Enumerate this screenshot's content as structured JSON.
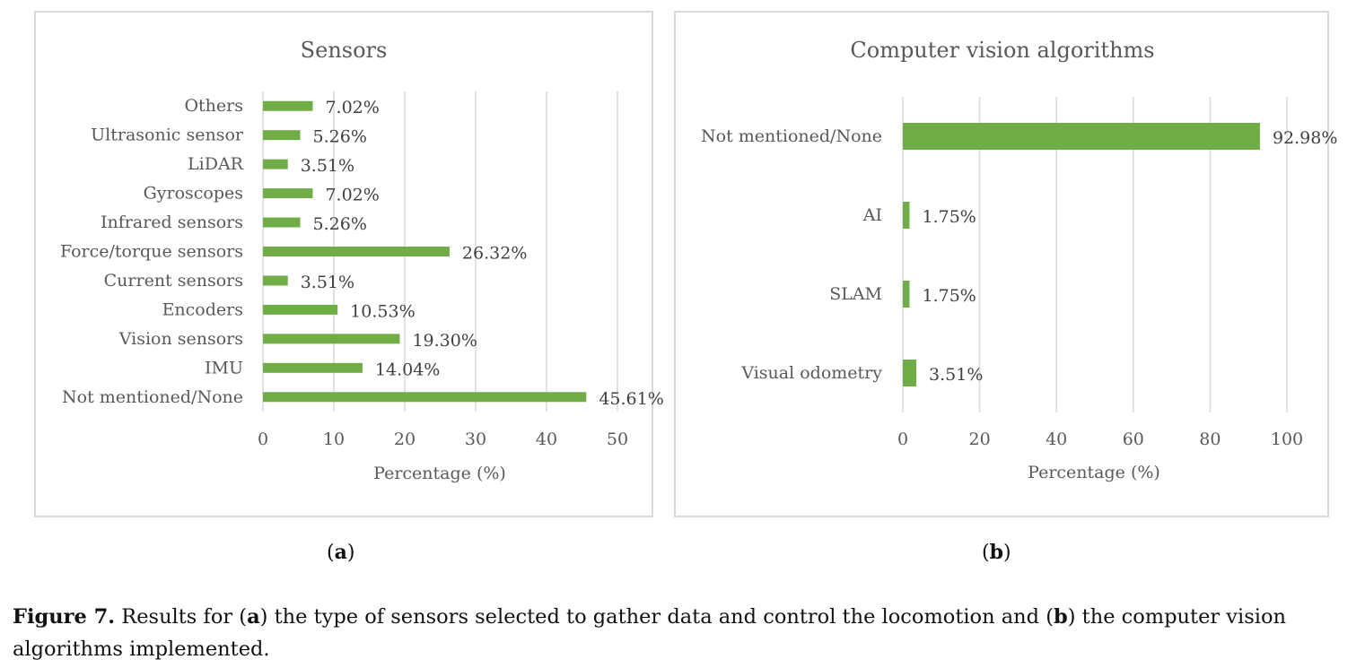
{
  "chart_data": [
    {
      "type": "bar",
      "orientation": "horizontal",
      "title": "Sensors",
      "xlabel": "Percentage (%)",
      "ylabel": "",
      "categories": [
        "Not mentioned/None",
        "IMU",
        "Vision sensors",
        "Encoders",
        "Current sensors",
        "Force/torque sensors",
        "Infrared sensors",
        "Gyroscopes",
        "LiDAR",
        "Ultrasonic sensor",
        "Others"
      ],
      "values": [
        45.61,
        14.04,
        19.3,
        10.53,
        3.51,
        26.32,
        5.26,
        7.02,
        3.51,
        5.26,
        7.02
      ],
      "value_labels": [
        "45.61%",
        "14.04%",
        "19.30%",
        "10.53%",
        "3.51%",
        "26.32%",
        "5.26%",
        "7.02%",
        "3.51%",
        "5.26%",
        "7.02%"
      ],
      "xlim": [
        0,
        50
      ],
      "xticks": [
        0,
        10,
        20,
        30,
        40,
        50
      ],
      "grid": true,
      "color": "#70ad47"
    },
    {
      "type": "bar",
      "orientation": "horizontal",
      "title": "Computer vision algorithms",
      "xlabel": "Percentage (%)",
      "ylabel": "",
      "categories": [
        "Visual odometry",
        "SLAM",
        "AI",
        "Not mentioned/None"
      ],
      "values": [
        3.51,
        1.75,
        1.75,
        92.98
      ],
      "value_labels": [
        "3.51%",
        "1.75%",
        "1.75%",
        "92.98%"
      ],
      "xlim": [
        0,
        100
      ],
      "xticks": [
        0,
        20,
        40,
        60,
        80,
        100
      ],
      "grid": true,
      "color": "#70ad47"
    }
  ],
  "sublabels": [
    "a",
    "b"
  ],
  "caption": {
    "label": "Figure 7.",
    "parts": [
      " Results for (",
      "a",
      ") the type of sensors selected to gather data and control the locomotion and (",
      "b",
      ") the computer vision algorithms implemented."
    ]
  }
}
